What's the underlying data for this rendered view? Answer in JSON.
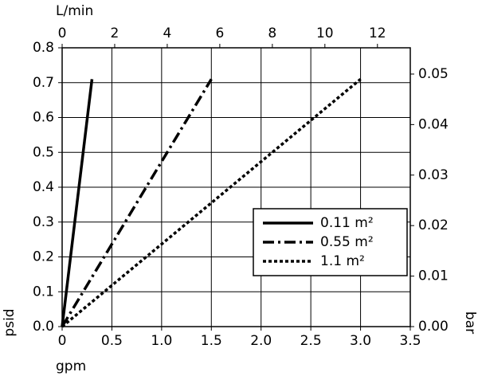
{
  "chart_data": {
    "type": "line",
    "x_label": "gpm",
    "y_label": "psid",
    "x2_label": "L/min",
    "y2_label": "bar",
    "xlim": [
      0,
      3.5
    ],
    "xticks": [
      0,
      0.5,
      {
        "value": 1.0,
        "label": "1.0"
      },
      1.5,
      {
        "value": 2.0,
        "label": "2.0"
      },
      2.5,
      {
        "value": 3.0,
        "label": "3.0"
      },
      3.5
    ],
    "ylim": [
      0,
      0.8
    ],
    "yticks": [
      {
        "value": 0,
        "label": "0.0"
      },
      0.1,
      0.2,
      0.3,
      0.4,
      0.5,
      0.6,
      0.7,
      0.8
    ],
    "x2lim": [
      0,
      13.25
    ],
    "x2ticks": [
      0,
      2,
      4,
      6,
      8,
      10,
      12
    ],
    "y2lim": [
      0,
      0.0552
    ],
    "y2ticks": [
      {
        "value": 0,
        "label": "0.00"
      },
      {
        "value": 0.01,
        "label": "0.01"
      },
      {
        "value": 0.02,
        "label": "0.02"
      },
      {
        "value": 0.03,
        "label": "0.03"
      },
      {
        "value": 0.04,
        "label": "0.04"
      },
      {
        "value": 0.05,
        "label": "0.05"
      }
    ],
    "grid": true,
    "legend": "lower right",
    "series": [
      {
        "name": "0.11 m²",
        "color": "#000000",
        "dash": "solid",
        "x": [
          0,
          0.3
        ],
        "values": [
          0,
          0.71
        ]
      },
      {
        "name": "0.55 m²",
        "color": "#000000",
        "dash": "dashdot",
        "x": [
          0,
          1.5
        ],
        "values": [
          0,
          0.71
        ]
      },
      {
        "name": "1.1 m²",
        "color": "#000000",
        "dash": "dotted",
        "x": [
          0,
          3.0
        ],
        "values": [
          0,
          0.71
        ]
      }
    ]
  }
}
